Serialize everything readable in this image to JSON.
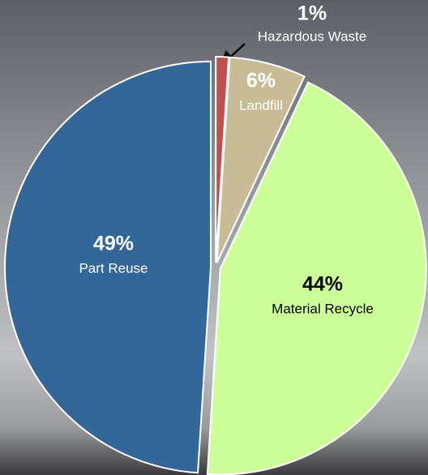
{
  "chart_data": {
    "type": "pie",
    "categories": [
      "Hazardous Waste",
      "Landfill",
      "Material Recycle",
      "Part Reuse"
    ],
    "values": [
      1,
      6,
      44,
      49
    ],
    "value_labels": [
      "1%",
      "6%",
      "44%",
      "49%"
    ],
    "colors": [
      "#c0504d",
      "#c8bc96",
      "#ccff99",
      "#336699"
    ]
  }
}
